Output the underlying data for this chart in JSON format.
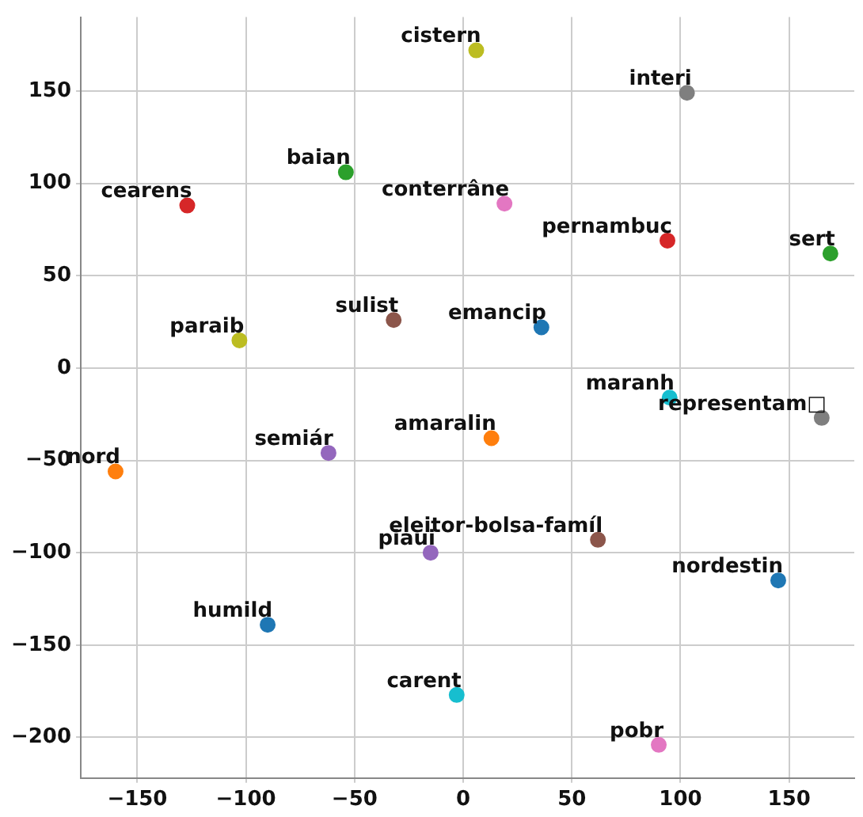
{
  "chart_data": {
    "type": "scatter",
    "xlim": [
      -176,
      180
    ],
    "ylim": [
      -222,
      190
    ],
    "xticks": [
      -150,
      -100,
      -50,
      0,
      50,
      100,
      150
    ],
    "yticks": [
      -200,
      -150,
      -100,
      -50,
      0,
      50,
      100,
      150
    ],
    "grid": true,
    "legend": false,
    "marker": "circle",
    "data_labels": false,
    "series": [
      {
        "name": "cistern",
        "color": "#bcbd22",
        "x": [
          6
        ],
        "values": [
          172
        ]
      },
      {
        "name": "interi",
        "color": "#7f7f7f",
        "x": [
          103
        ],
        "values": [
          149
        ]
      },
      {
        "name": "baian",
        "color": "#2ca02c",
        "x": [
          -54
        ],
        "values": [
          106
        ]
      },
      {
        "name": "cearens",
        "color": "#d62728",
        "x": [
          -127
        ],
        "values": [
          88
        ]
      },
      {
        "name": "conterrâne",
        "color": "#e377c2",
        "x": [
          19
        ],
        "values": [
          89
        ]
      },
      {
        "name": "pernambuc",
        "color": "#d62728",
        "x": [
          94
        ],
        "values": [
          69
        ]
      },
      {
        "name": "sert",
        "color": "#2ca02c",
        "x": [
          169
        ],
        "values": [
          62
        ]
      },
      {
        "name": "paraib",
        "color": "#bcbd22",
        "x": [
          -103
        ],
        "values": [
          15
        ]
      },
      {
        "name": "sulist",
        "color": "#8c564b",
        "x": [
          -32
        ],
        "values": [
          26
        ]
      },
      {
        "name": "emancip",
        "color": "#1f77b4",
        "x": [
          36
        ],
        "values": [
          22
        ]
      },
      {
        "name": "maranh",
        "color": "#17becf",
        "x": [
          95
        ],
        "values": [
          -16
        ]
      },
      {
        "name": "representam□",
        "color": "#7f7f7f",
        "x": [
          165
        ],
        "values": [
          -27
        ]
      },
      {
        "name": "amaralin",
        "color": "#ff7f0e",
        "x": [
          13
        ],
        "values": [
          -38
        ]
      },
      {
        "name": "semiár",
        "color": "#9467bd",
        "x": [
          -62
        ],
        "values": [
          -46
        ]
      },
      {
        "name": "nord",
        "color": "#ff7f0e",
        "x": [
          -160
        ],
        "values": [
          -56
        ]
      },
      {
        "name": "eleitor-bolsa-famíl",
        "color": "#8c564b",
        "x": [
          62
        ],
        "values": [
          -93
        ]
      },
      {
        "name": "piaui",
        "color": "#9467bd",
        "x": [
          -15
        ],
        "values": [
          -100
        ]
      },
      {
        "name": "nordestin",
        "color": "#1f77b4",
        "x": [
          145
        ],
        "values": [
          -115
        ]
      },
      {
        "name": "humild",
        "color": "#1f77b4",
        "x": [
          -90
        ],
        "values": [
          -139
        ]
      },
      {
        "name": "carent",
        "color": "#17becf",
        "x": [
          -3
        ],
        "values": [
          -177
        ]
      },
      {
        "name": "pobr",
        "color": "#e377c2",
        "x": [
          90
        ],
        "values": [
          -204
        ]
      }
    ]
  }
}
